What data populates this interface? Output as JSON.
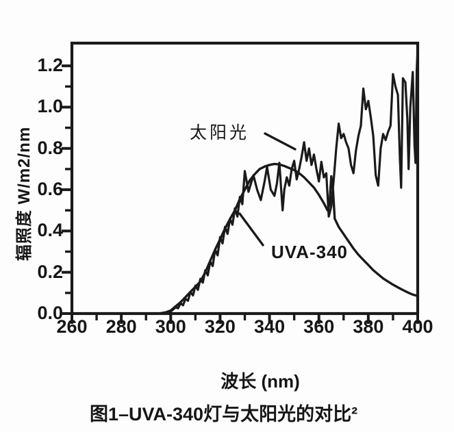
{
  "figure": {
    "caption": "图1–UVA-340灯与太阳光的对比²"
  },
  "chart_data": {
    "type": "line",
    "title": "",
    "xlabel": "波长 (nm)",
    "ylabel": "辐照度 W/m2/nm",
    "xlim": [
      260,
      400
    ],
    "ylim": [
      0,
      1.31
    ],
    "grid": false,
    "frame": "box",
    "line_color": "#1a1a1a",
    "x_ticks": [
      260,
      280,
      300,
      320,
      340,
      360,
      380,
      400
    ],
    "x_minor_ticks": [
      270,
      290,
      310,
      330,
      350,
      370,
      390
    ],
    "y_ticks": [
      "0.0",
      "0.2",
      "0.4",
      "0.6",
      "0.8",
      "1.0",
      "1.2"
    ],
    "y_minor_ticks": [
      0.1,
      0.3,
      0.5,
      0.7,
      0.9,
      1.1
    ],
    "annotations": [
      {
        "text": "太阳光",
        "series": "sunlight"
      },
      {
        "text": "UVA-340",
        "series": "uva340"
      }
    ],
    "series": [
      {
        "name": "太阳光",
        "id": "sunlight",
        "points": [
          [
            296,
            0
          ],
          [
            298,
            0.004
          ],
          [
            300,
            0.01
          ],
          [
            302,
            0.03
          ],
          [
            303,
            0.026
          ],
          [
            304,
            0.05
          ],
          [
            305,
            0.04
          ],
          [
            306,
            0.072
          ],
          [
            307,
            0.062
          ],
          [
            308,
            0.105
          ],
          [
            309,
            0.088
          ],
          [
            310,
            0.135
          ],
          [
            311,
            0.115
          ],
          [
            312,
            0.168
          ],
          [
            313,
            0.15
          ],
          [
            314,
            0.21
          ],
          [
            315,
            0.185
          ],
          [
            316,
            0.252
          ],
          [
            317,
            0.23
          ],
          [
            318,
            0.31
          ],
          [
            319,
            0.282
          ],
          [
            320,
            0.37
          ],
          [
            321,
            0.34
          ],
          [
            322,
            0.42
          ],
          [
            323,
            0.386
          ],
          [
            324,
            0.46
          ],
          [
            325,
            0.43
          ],
          [
            326,
            0.51
          ],
          [
            327,
            0.47
          ],
          [
            328,
            0.565
          ],
          [
            329,
            0.53
          ],
          [
            330,
            0.69
          ],
          [
            331.5,
            0.59
          ],
          [
            333.5,
            0.67
          ],
          [
            335,
            0.6
          ],
          [
            336.5,
            0.55
          ],
          [
            338,
            0.64
          ],
          [
            339,
            0.71
          ],
          [
            340.5,
            0.6
          ],
          [
            342,
            0.57
          ],
          [
            343,
            0.63
          ],
          [
            344,
            0.73
          ],
          [
            345.3,
            0.5
          ],
          [
            346,
            0.6
          ],
          [
            347,
            0.66
          ],
          [
            348,
            0.62
          ],
          [
            349,
            0.7
          ],
          [
            350,
            0.74
          ],
          [
            351,
            0.65
          ],
          [
            352,
            0.7
          ],
          [
            353,
            0.76
          ],
          [
            354,
            0.83
          ],
          [
            355,
            0.74
          ],
          [
            356,
            0.8
          ],
          [
            357,
            0.72
          ],
          [
            358,
            0.77
          ],
          [
            359,
            0.7
          ],
          [
            360,
            0.64
          ],
          [
            361,
            0.735
          ],
          [
            362,
            0.66
          ],
          [
            363,
            0.68
          ],
          [
            364,
            0.47
          ],
          [
            365,
            0.52
          ],
          [
            366,
            0.65
          ],
          [
            367,
            0.8
          ],
          [
            368,
            0.92
          ],
          [
            369,
            0.85
          ],
          [
            370,
            0.87
          ],
          [
            371,
            0.83
          ],
          [
            372,
            0.8
          ],
          [
            373,
            0.72
          ],
          [
            374,
            0.68
          ],
          [
            375,
            0.79
          ],
          [
            376,
            0.86
          ],
          [
            377,
            0.91
          ],
          [
            378,
            1.09
          ],
          [
            379,
            0.99
          ],
          [
            380,
            1.03
          ],
          [
            381,
            0.95
          ],
          [
            382,
            0.86
          ],
          [
            383,
            0.67
          ],
          [
            384,
            0.62
          ],
          [
            385,
            0.8
          ],
          [
            386,
            0.87
          ],
          [
            387,
            0.84
          ],
          [
            388,
            0.88
          ],
          [
            389,
            0.91
          ],
          [
            390,
            1.16
          ],
          [
            391,
            1.1
          ],
          [
            392,
            1.06
          ],
          [
            392.8,
            0.75
          ],
          [
            393.3,
            0.61
          ],
          [
            394,
            1.14
          ],
          [
            395,
            1.12
          ],
          [
            395.8,
            0.94
          ],
          [
            396.3,
            0.7
          ],
          [
            397,
            1.0
          ],
          [
            398,
            1.17
          ],
          [
            398.7,
            0.82
          ],
          [
            399.1,
            0.73
          ],
          [
            399.6,
            1.18
          ],
          [
            400,
            1.29
          ]
        ]
      },
      {
        "name": "UVA-340",
        "id": "uva340",
        "points": [
          [
            295,
            0
          ],
          [
            298,
            0.006
          ],
          [
            300,
            0.015
          ],
          [
            302,
            0.035
          ],
          [
            304,
            0.055
          ],
          [
            306,
            0.08
          ],
          [
            308,
            0.105
          ],
          [
            310,
            0.13
          ],
          [
            312,
            0.155
          ],
          [
            314,
            0.2
          ],
          [
            316,
            0.255
          ],
          [
            318,
            0.31
          ],
          [
            320,
            0.36
          ],
          [
            322,
            0.412
          ],
          [
            324,
            0.458
          ],
          [
            326,
            0.5
          ],
          [
            328,
            0.555
          ],
          [
            330,
            0.6
          ],
          [
            332,
            0.645
          ],
          [
            334,
            0.675
          ],
          [
            336,
            0.7
          ],
          [
            338,
            0.712
          ],
          [
            340,
            0.72
          ],
          [
            342,
            0.725
          ],
          [
            344,
            0.722
          ],
          [
            346,
            0.715
          ],
          [
            348,
            0.705
          ],
          [
            350,
            0.695
          ],
          [
            352,
            0.68
          ],
          [
            354,
            0.66
          ],
          [
            356,
            0.635
          ],
          [
            358,
            0.61
          ],
          [
            360,
            0.575
          ],
          [
            362,
            0.535
          ],
          [
            363.5,
            0.5
          ],
          [
            364.3,
            0.53
          ],
          [
            365,
            0.665
          ],
          [
            365.7,
            0.6
          ],
          [
            366.4,
            0.46
          ],
          [
            368,
            0.42
          ],
          [
            370,
            0.385
          ],
          [
            372,
            0.35
          ],
          [
            374,
            0.315
          ],
          [
            376,
            0.285
          ],
          [
            378,
            0.26
          ],
          [
            380,
            0.235
          ],
          [
            382,
            0.21
          ],
          [
            384,
            0.19
          ],
          [
            386,
            0.17
          ],
          [
            388,
            0.155
          ],
          [
            390,
            0.14
          ],
          [
            392,
            0.127
          ],
          [
            394,
            0.114
          ],
          [
            396,
            0.102
          ],
          [
            398,
            0.092
          ],
          [
            400,
            0.085
          ]
        ]
      }
    ]
  }
}
